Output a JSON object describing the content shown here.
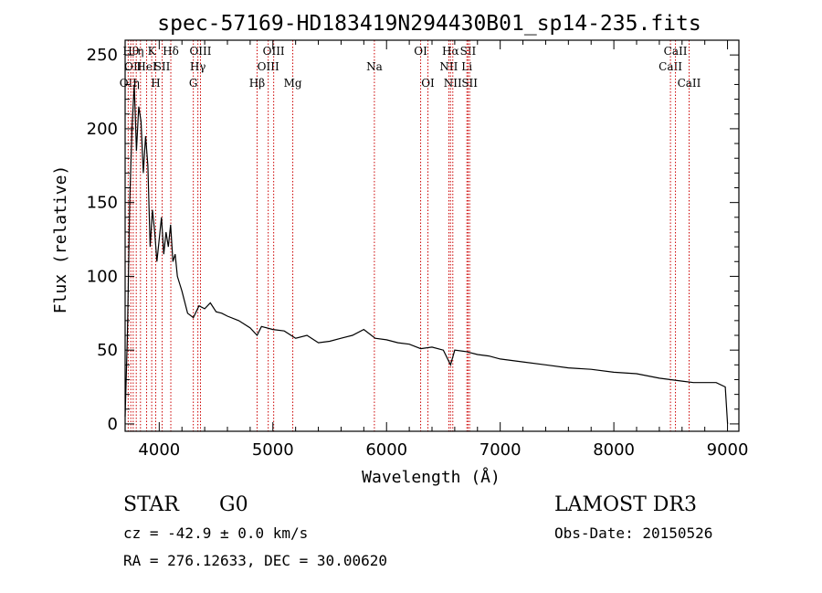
{
  "chart_data": {
    "type": "line",
    "title": "spec-57169-HD183419N294430B01_sp14-235.fits",
    "xlabel": "Wavelength (Å)",
    "ylabel": "Flux (relative)",
    "xlim": [
      3700,
      9100
    ],
    "ylim": [
      -5,
      260
    ],
    "x_ticks": [
      4000,
      5000,
      6000,
      7000,
      8000,
      9000
    ],
    "y_ticks": [
      0,
      50,
      100,
      150,
      200,
      250
    ],
    "grid": false,
    "series": [
      {
        "name": "spectrum",
        "x": [
          3700,
          3720,
          3740,
          3760,
          3780,
          3800,
          3820,
          3840,
          3860,
          3880,
          3900,
          3920,
          3940,
          3960,
          3980,
          4000,
          4020,
          4040,
          4060,
          4080,
          4100,
          4120,
          4140,
          4160,
          4180,
          4200,
          4250,
          4300,
          4350,
          4400,
          4450,
          4500,
          4550,
          4600,
          4700,
          4800,
          4861,
          4900,
          5000,
          5100,
          5200,
          5300,
          5400,
          5500,
          5600,
          5700,
          5800,
          5900,
          6000,
          6100,
          6200,
          6300,
          6400,
          6500,
          6563,
          6600,
          6700,
          6800,
          6900,
          7000,
          7200,
          7400,
          7600,
          7800,
          8000,
          8200,
          8400,
          8500,
          8600,
          8700,
          8800,
          8900,
          8980,
          9000
        ],
        "y": [
          5,
          60,
          150,
          200,
          230,
          185,
          215,
          205,
          170,
          195,
          175,
          120,
          145,
          130,
          110,
          125,
          140,
          115,
          130,
          120,
          135,
          110,
          115,
          100,
          95,
          90,
          75,
          72,
          80,
          78,
          82,
          76,
          75,
          73,
          70,
          65,
          60,
          66,
          64,
          63,
          58,
          60,
          55,
          56,
          58,
          60,
          64,
          58,
          57,
          55,
          54,
          51,
          52,
          50,
          40,
          50,
          49,
          47,
          46,
          44,
          42,
          40,
          38,
          37,
          35,
          34,
          31,
          30,
          29,
          28,
          28,
          28,
          25,
          0
        ]
      }
    ],
    "line_markers": [
      {
        "x": 3727,
        "labels": [
          {
            "text": "OII",
            "row": 3
          }
        ]
      },
      {
        "x": 3750,
        "labels": [
          {
            "text": "Hθ",
            "row": 1
          }
        ]
      },
      {
        "x": 3771,
        "labels": [
          {
            "text": "OII",
            "row": 2
          }
        ]
      },
      {
        "x": 3798,
        "labels": [
          {
            "text": "η",
            "row": 3
          }
        ]
      },
      {
        "x": 3835,
        "labels": [
          {
            "text": "η",
            "row": 1
          }
        ]
      },
      {
        "x": 3889,
        "labels": [
          {
            "text": "HeI",
            "row": 2
          }
        ]
      },
      {
        "x": 3934,
        "labels": [
          {
            "text": "K",
            "row": 1
          }
        ]
      },
      {
        "x": 3969,
        "labels": [
          {
            "text": "H",
            "row": 3
          }
        ]
      },
      {
        "x": 4026,
        "labels": [
          {
            "text": "SII",
            "row": 2
          }
        ]
      },
      {
        "x": 4102,
        "labels": [
          {
            "text": "Hδ",
            "row": 1
          }
        ]
      },
      {
        "x": 4300,
        "labels": [
          {
            "text": "G",
            "row": 3
          }
        ]
      },
      {
        "x": 4340,
        "labels": [
          {
            "text": "Hγ",
            "row": 2
          }
        ]
      },
      {
        "x": 4363,
        "labels": [
          {
            "text": "OIII",
            "row": 1
          }
        ]
      },
      {
        "x": 4861,
        "labels": [
          {
            "text": "Hβ",
            "row": 3
          }
        ]
      },
      {
        "x": 4959,
        "labels": [
          {
            "text": "OIII",
            "row": 2
          }
        ]
      },
      {
        "x": 5007,
        "labels": [
          {
            "text": "OIII",
            "row": 1
          }
        ]
      },
      {
        "x": 5175,
        "labels": [
          {
            "text": "Mg",
            "row": 3
          }
        ]
      },
      {
        "x": 5893,
        "labels": [
          {
            "text": "Na",
            "row": 2
          }
        ]
      },
      {
        "x": 6300,
        "labels": [
          {
            "text": "OI",
            "row": 1
          }
        ]
      },
      {
        "x": 6364,
        "labels": [
          {
            "text": "OI",
            "row": 3
          }
        ]
      },
      {
        "x": 6548,
        "labels": [
          {
            "text": "NII",
            "row": 2
          }
        ]
      },
      {
        "x": 6563,
        "labels": [
          {
            "text": "Hα",
            "row": 1
          }
        ]
      },
      {
        "x": 6583,
        "labels": [
          {
            "text": "NII",
            "row": 3
          }
        ]
      },
      {
        "x": 6707,
        "labels": [
          {
            "text": "Li",
            "row": 2
          }
        ]
      },
      {
        "x": 6717,
        "labels": [
          {
            "text": "SII",
            "row": 1
          }
        ]
      },
      {
        "x": 6731,
        "labels": [
          {
            "text": "SII",
            "row": 3
          }
        ]
      },
      {
        "x": 8498,
        "labels": [
          {
            "text": "CaII",
            "row": 2
          }
        ]
      },
      {
        "x": 8542,
        "labels": [
          {
            "text": "CaII",
            "row": 1
          }
        ]
      },
      {
        "x": 8662,
        "labels": [
          {
            "text": "CaII",
            "row": 3
          }
        ]
      }
    ]
  },
  "info": {
    "object_class": "STAR",
    "subclass": "G0",
    "survey": "LAMOST DR3",
    "redshift_line": "cz = -42.9 ± 0.0 km/s",
    "obs_date": "Obs-Date: 20150526",
    "coords": "RA = 276.12633, DEC =  30.00620"
  },
  "colors": {
    "line_marker": "#cc0000",
    "spectrum": "#000000",
    "axes": "#000000"
  }
}
